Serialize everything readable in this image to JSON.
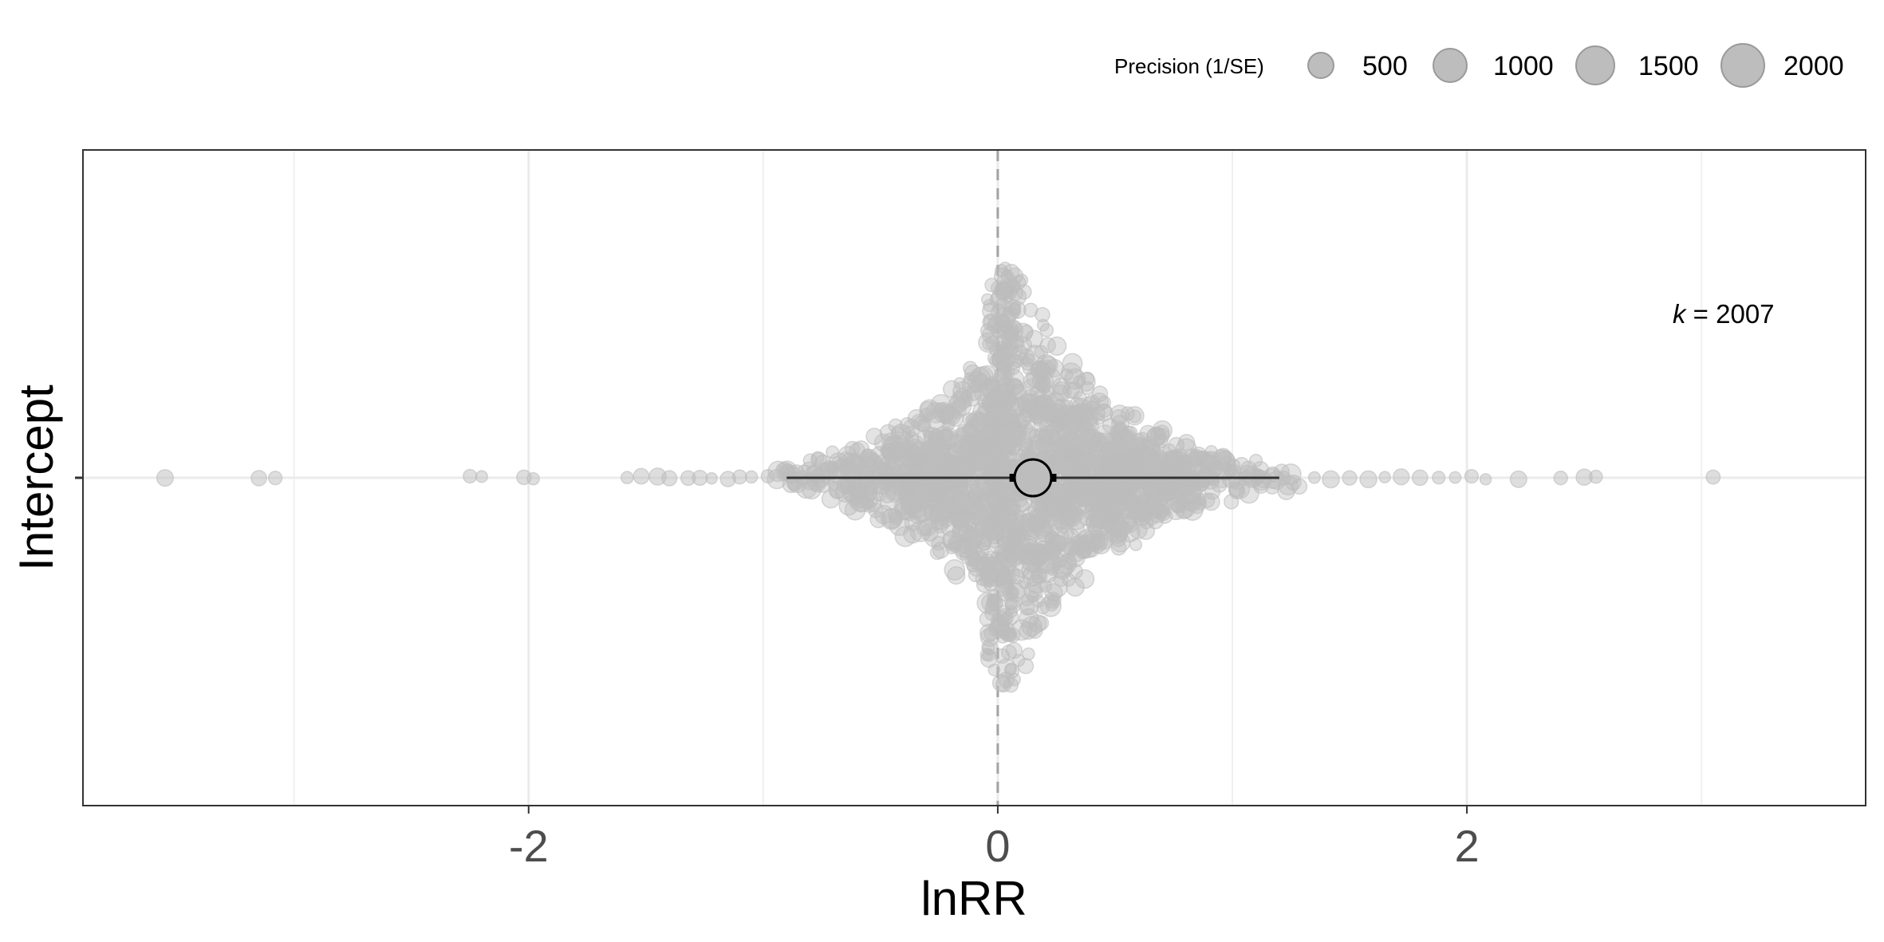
{
  "chart_data": {
    "type": "scatter",
    "subtype": "orchard-plot",
    "xlabel": "lnRR",
    "ylabel": "Intercept",
    "xlim": [
      -3.9,
      3.7
    ],
    "x_ticks": [
      -2,
      0,
      2
    ],
    "x_minor_gridlines": [
      -3,
      -1,
      1,
      3
    ],
    "categories": [
      "Intercept"
    ],
    "grid": "on",
    "reference_line_x": 0,
    "annotation": {
      "k_symbol": "k",
      "k_text": " = 2007",
      "k": 2007
    },
    "estimate": {
      "category": "Intercept",
      "mean": 0.15,
      "ci": [
        0.05,
        0.25
      ],
      "pi": [
        -0.9,
        1.2
      ]
    },
    "legend": {
      "title": "Precision (1/SE)",
      "position": "top-right",
      "entries": [
        {
          "label": "500",
          "value": 500
        },
        {
          "label": "1000",
          "value": 1000
        },
        {
          "label": "1500",
          "value": 1500
        },
        {
          "label": "2000",
          "value": 2000
        }
      ]
    },
    "outliers_lnRR": [
      -3.55,
      -3.15,
      -3.08,
      -2.25,
      -2.2,
      -2.02,
      -1.98,
      -1.58,
      -1.52,
      -1.45,
      -1.4,
      -1.32,
      -1.27,
      -1.22,
      -1.15,
      -1.1,
      -1.05,
      -0.98,
      1.35,
      1.42,
      1.5,
      1.58,
      1.65,
      1.72,
      1.8,
      1.88,
      1.95,
      2.02,
      2.08,
      2.22,
      2.4,
      2.5,
      2.55,
      3.05
    ],
    "point_color": "#bdbdbd",
    "estimate_color": "#bdbdbd"
  }
}
